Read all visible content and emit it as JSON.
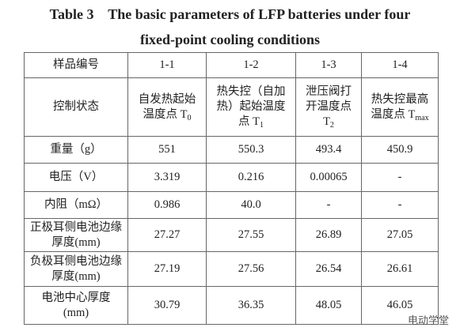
{
  "title": [
    "Table 3    The basic parameters of LFP batteries under four",
    "fixed-point cooling conditions"
  ],
  "table": {
    "rows": [
      [
        "样品编号",
        "1-1",
        "1-2",
        "1-3",
        "1-4"
      ],
      [
        "控制状态",
        {
          "text": "自发热起始温度点 T",
          "sub": "0"
        },
        {
          "text": "热失控（自加热）起始温度点 T",
          "sub": "1"
        },
        {
          "text": "泄压阀打开温度点 T",
          "sub": "2"
        },
        {
          "text": "热失控最高温度点 T",
          "sub": "max"
        }
      ],
      [
        "重量（g）",
        "551",
        "550.3",
        "493.4",
        "450.9"
      ],
      [
        "电压（V）",
        "3.319",
        "0.216",
        "0.00065",
        "-"
      ],
      [
        "内阻（mΩ）",
        "0.986",
        "40.0",
        "-",
        "-"
      ],
      [
        "正极耳侧电池边缘厚度(mm)",
        "27.27",
        "27.55",
        "26.89",
        "27.05"
      ],
      [
        "负极耳侧电池边缘厚度(mm)",
        "27.19",
        "27.56",
        "26.54",
        "26.61"
      ],
      [
        "电池中心厚度(mm)",
        "30.79",
        "36.35",
        "48.05",
        "46.05"
      ]
    ]
  },
  "watermark": "电动学堂"
}
